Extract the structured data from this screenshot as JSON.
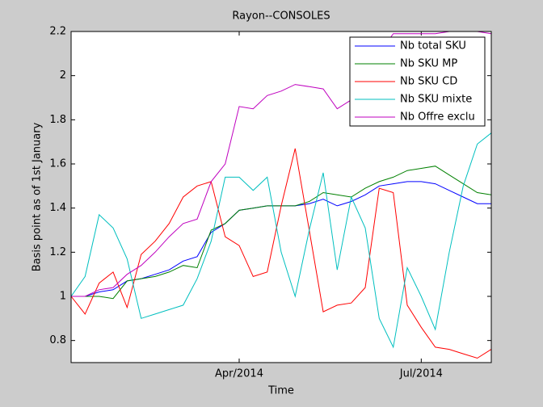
{
  "chart_data": {
    "type": "line",
    "title": "Rayon--CONSOLES",
    "xlabel": "Time",
    "ylabel": "Basis point as of 1st January",
    "categories": [
      null,
      null,
      null,
      null,
      null,
      null,
      null,
      null,
      null,
      null,
      null,
      null,
      "Apr/2014",
      null,
      null,
      null,
      null,
      null,
      null,
      null,
      null,
      null,
      null,
      null,
      null,
      "Jul/2014",
      null,
      null,
      null,
      null,
      null
    ],
    "ylim": [
      0.7,
      2.2
    ],
    "yticks": [
      0.8,
      1,
      1.2,
      1.4,
      1.6,
      1.8,
      2,
      2.2
    ],
    "grid": false,
    "legend": "upper right",
    "series": [
      {
        "name": "Nb total SKU",
        "color": "#0000ff",
        "values": [
          1.0,
          1.0,
          1.02,
          1.03,
          1.07,
          1.08,
          1.1,
          1.12,
          1.16,
          1.18,
          1.29,
          1.33,
          1.39,
          1.4,
          1.41,
          1.41,
          1.41,
          1.42,
          1.44,
          1.41,
          1.43,
          1.46,
          1.5,
          1.51,
          1.52,
          1.52,
          1.51,
          1.48,
          1.45,
          1.42,
          1.42
        ]
      },
      {
        "name": "Nb SKU MP",
        "color": "#008000",
        "values": [
          1.0,
          1.0,
          1.0,
          0.99,
          1.07,
          1.08,
          1.09,
          1.11,
          1.14,
          1.13,
          1.3,
          1.33,
          1.39,
          1.4,
          1.41,
          1.41,
          1.41,
          1.43,
          1.47,
          1.46,
          1.45,
          1.49,
          1.52,
          1.54,
          1.57,
          1.58,
          1.59,
          1.55,
          1.51,
          1.47,
          1.46
        ]
      },
      {
        "name": "Nb SKU CD",
        "color": "#ff0000",
        "values": [
          1.0,
          0.92,
          1.06,
          1.11,
          0.95,
          1.19,
          1.25,
          1.33,
          1.45,
          1.5,
          1.52,
          1.27,
          1.23,
          1.09,
          1.11,
          1.41,
          1.67,
          1.3,
          0.93,
          0.96,
          0.97,
          1.04,
          1.49,
          1.47,
          0.96,
          0.86,
          0.77,
          0.76,
          0.74,
          0.72,
          0.76
        ]
      },
      {
        "name": "Nb SKU mixte",
        "color": "#00bfbf",
        "values": [
          1.0,
          1.09,
          1.37,
          1.31,
          1.17,
          0.9,
          0.92,
          0.94,
          0.96,
          1.08,
          1.25,
          1.54,
          1.54,
          1.48,
          1.54,
          1.2,
          1.0,
          1.3,
          1.56,
          1.12,
          1.45,
          1.31,
          0.9,
          0.77,
          1.13,
          1.0,
          0.85,
          1.2,
          1.5,
          1.69,
          1.74
        ]
      },
      {
        "name": "Nb Offre exclu",
        "color": "#bf00bf",
        "values": [
          1.0,
          1.0,
          1.03,
          1.04,
          1.1,
          1.14,
          1.2,
          1.27,
          1.33,
          1.35,
          1.52,
          1.6,
          1.86,
          1.85,
          1.91,
          1.93,
          1.96,
          1.95,
          1.94,
          1.85,
          1.89,
          1.95,
          2.1,
          2.19,
          2.19,
          2.19,
          2.19,
          2.2,
          2.2,
          2.2,
          2.19
        ]
      }
    ]
  }
}
